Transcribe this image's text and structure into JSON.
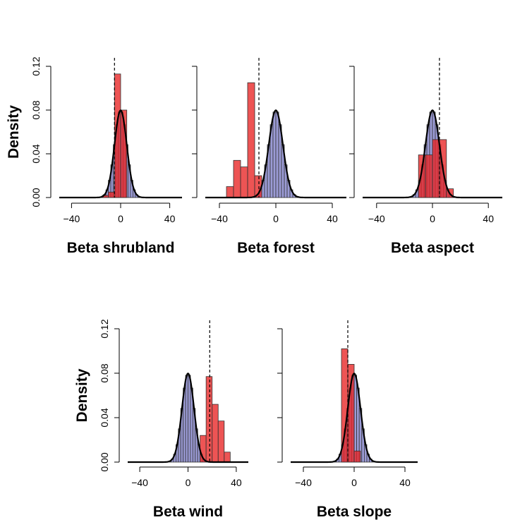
{
  "chart_data": [
    {
      "type": "histogram",
      "xlabel": "Beta shrubland",
      "ylabel": "Density",
      "xticks": [
        -40,
        0,
        40
      ],
      "yticks": [
        "0.00",
        "0.04",
        "0.08",
        "0.12"
      ],
      "xlim": [
        -50,
        50
      ],
      "ylim": [
        0,
        0.12
      ],
      "prior": {
        "mean": 0,
        "sd": 5
      },
      "vline": -5,
      "posterior": {
        "binwidth": 5,
        "bins": [
          [
            -15,
            0.002
          ],
          [
            -10,
            0.005
          ],
          [
            -5,
            0.113
          ],
          [
            0,
            0.08
          ]
        ]
      },
      "colors": {
        "prior": "#9b9bd6",
        "posterior": "#e82424"
      }
    },
    {
      "type": "histogram",
      "xlabel": "Beta forest",
      "ylabel": "",
      "xticks": [
        -40,
        0,
        40
      ],
      "yticks": [
        "",
        "",
        "",
        ""
      ],
      "xlim": [
        -50,
        50
      ],
      "ylim": [
        0,
        0.12
      ],
      "prior": {
        "mean": 0,
        "sd": 5
      },
      "vline": -12,
      "posterior": {
        "binwidth": 5,
        "bins": [
          [
            -35,
            0.01
          ],
          [
            -30,
            0.034
          ],
          [
            -25,
            0.028
          ],
          [
            -20,
            0.105
          ],
          [
            -15,
            0.02
          ]
        ]
      },
      "colors": {
        "prior": "#9b9bd6",
        "posterior": "#e82424"
      }
    },
    {
      "type": "histogram",
      "xlabel": "Beta aspect",
      "ylabel": "",
      "xticks": [
        -40,
        0,
        40
      ],
      "yticks": [
        "",
        "",
        "",
        ""
      ],
      "xlim": [
        -50,
        50
      ],
      "ylim": [
        0,
        0.12
      ],
      "prior": {
        "mean": 0,
        "sd": 5
      },
      "vline": 5,
      "posterior": {
        "binwidth": 5,
        "bins": [
          [
            -10,
            0.039
          ],
          [
            -5,
            0.039
          ],
          [
            0,
            0.053
          ],
          [
            5,
            0.053
          ],
          [
            10,
            0.008
          ]
        ]
      },
      "colors": {
        "prior": "#9b9bd6",
        "posterior": "#e82424"
      }
    },
    {
      "type": "histogram",
      "xlabel": "Beta wind",
      "ylabel": "Density",
      "xticks": [
        -40,
        0,
        40
      ],
      "yticks": [
        "0.00",
        "0.04",
        "0.08",
        "0.12"
      ],
      "xlim": [
        -50,
        50
      ],
      "ylim": [
        0,
        0.12
      ],
      "prior": {
        "mean": 0,
        "sd": 5
      },
      "vline": 18,
      "posterior": {
        "binwidth": 5,
        "bins": [
          [
            10,
            0.024
          ],
          [
            15,
            0.077
          ],
          [
            20,
            0.052
          ],
          [
            25,
            0.037
          ],
          [
            30,
            0.009
          ]
        ]
      },
      "colors": {
        "prior": "#9b9bd6",
        "posterior": "#e82424"
      }
    },
    {
      "type": "histogram",
      "xlabel": "Beta slope",
      "ylabel": "",
      "xticks": [
        -40,
        0,
        40
      ],
      "yticks": [
        "",
        "",
        "",
        ""
      ],
      "xlim": [
        -50,
        50
      ],
      "ylim": [
        0,
        0.12
      ],
      "prior": {
        "mean": 0,
        "sd": 5
      },
      "vline": -5,
      "posterior": {
        "binwidth": 5,
        "bins": [
          [
            -10,
            0.102
          ],
          [
            -5,
            0.088
          ],
          [
            0,
            0.01
          ]
        ]
      },
      "colors": {
        "prior": "#9b9bd6",
        "posterior": "#e82424"
      }
    }
  ]
}
